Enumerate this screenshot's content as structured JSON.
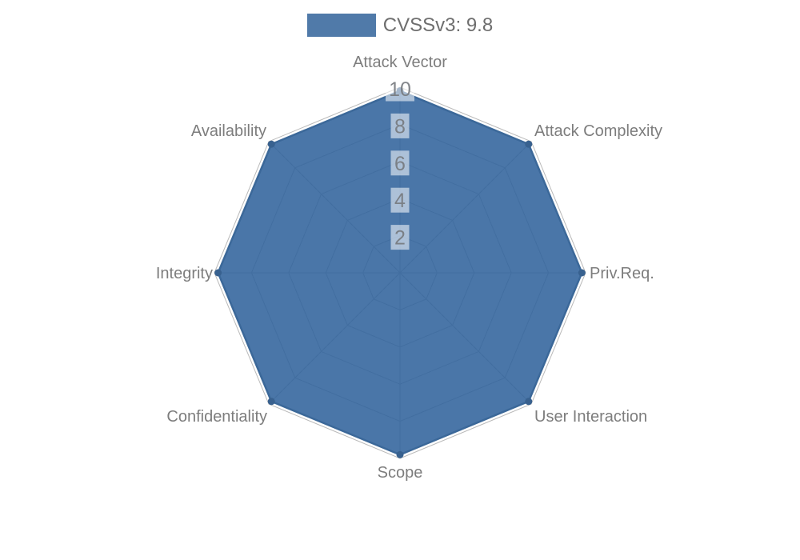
{
  "legend": {
    "label": "CVSSv3: 9.8",
    "swatch_color": "#507aa9"
  },
  "chart_data": {
    "type": "radar",
    "title": "CVSSv3: 9.8",
    "categories": [
      "Attack Vector",
      "Attack Complexity",
      "Priv.Req.",
      "User Interaction",
      "Scope",
      "Confidentiality",
      "Integrity",
      "Availability"
    ],
    "series": [
      {
        "name": "CVSSv3: 9.8",
        "values": [
          9.8,
          9.8,
          9.8,
          9.8,
          9.8,
          9.8,
          9.8,
          9.8
        ]
      }
    ],
    "ticks": [
      2,
      4,
      6,
      8,
      10
    ],
    "ylim": [
      0,
      10
    ],
    "grid": "on",
    "legend_position": "top-center",
    "colors": {
      "fill": "#31639c",
      "fill_opacity": 0.88,
      "stroke": "#3b6899",
      "marker": "#38618f",
      "grid_line": "#b9b9b9",
      "axis_label": "#7d7d7d",
      "tick_label": "#76797d",
      "tick_box": "#ffffff",
      "legend_text": "#6e6e6e"
    }
  }
}
